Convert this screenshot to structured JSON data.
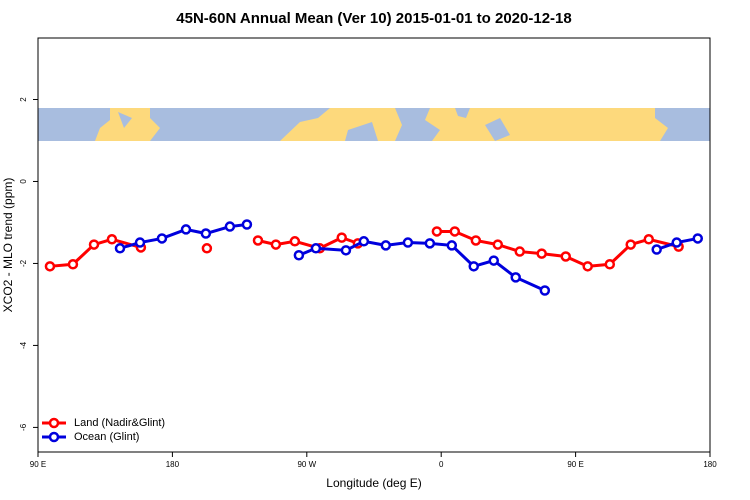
{
  "chart_data": {
    "type": "line",
    "title": "45N-60N Annual Mean (Ver 10)   2015-01-01 to 2020-12-18",
    "x_label": "Longitude (deg E)",
    "y_label": "XCO2 - MLO trend (ppm)",
    "xlim": [
      90,
      540
    ],
    "ylim": [
      -6.6,
      3.5
    ],
    "xticks": [
      {
        "value": 90,
        "label": "90 E"
      },
      180,
      {
        "value": 270,
        "label": "90 W"
      },
      {
        "value": 360,
        "label": "0"
      },
      {
        "value": 450,
        "label": "90 E"
      },
      {
        "value": 540,
        "label": "180"
      }
    ],
    "yticks": [
      -6,
      -4,
      -2,
      0,
      2
    ],
    "legend": "bottom-left",
    "series": [
      {
        "name": "Land (Nadir&Glint)",
        "color": "#ff0000",
        "x": [
          98.0,
          113.4,
          127.5,
          139.5,
          158.9,
          null,
          203.1,
          null,
          237.3,
          249.3,
          262.0,
          278.7,
          293.4,
          304.2,
          null,
          357.1,
          369.1,
          383.2,
          397.9,
          412.6,
          427.3,
          443.4,
          458.1,
          472.9,
          486.9,
          499.0,
          519.0
        ],
        "values": [
          -2.07,
          -2.02,
          -1.54,
          -1.41,
          -1.61,
          null,
          -1.63,
          null,
          -1.44,
          -1.54,
          -1.46,
          -1.63,
          -1.37,
          -1.51,
          null,
          -1.22,
          -1.22,
          -1.44,
          -1.54,
          -1.71,
          -1.76,
          -1.83,
          -2.07,
          -2.02,
          -1.54,
          -1.41,
          -1.59
        ]
      },
      {
        "name": "Ocean (Glint)",
        "color": "#0000dd",
        "x": [
          144.9,
          158.3,
          173.0,
          189.1,
          202.4,
          218.5,
          229.9,
          null,
          264.7,
          276.1,
          296.2,
          308.2,
          322.9,
          337.7,
          352.4,
          367.1,
          381.8,
          395.2,
          409.9,
          429.4,
          null,
          504.3,
          517.7,
          531.8
        ],
        "values": [
          -1.63,
          -1.49,
          -1.39,
          -1.17,
          -1.27,
          -1.1,
          -1.05,
          null,
          -1.8,
          -1.63,
          -1.68,
          -1.46,
          -1.56,
          -1.49,
          -1.51,
          -1.56,
          -2.07,
          -1.93,
          -2.34,
          -2.66,
          null,
          -1.66,
          -1.49,
          -1.39
        ]
      }
    ]
  }
}
